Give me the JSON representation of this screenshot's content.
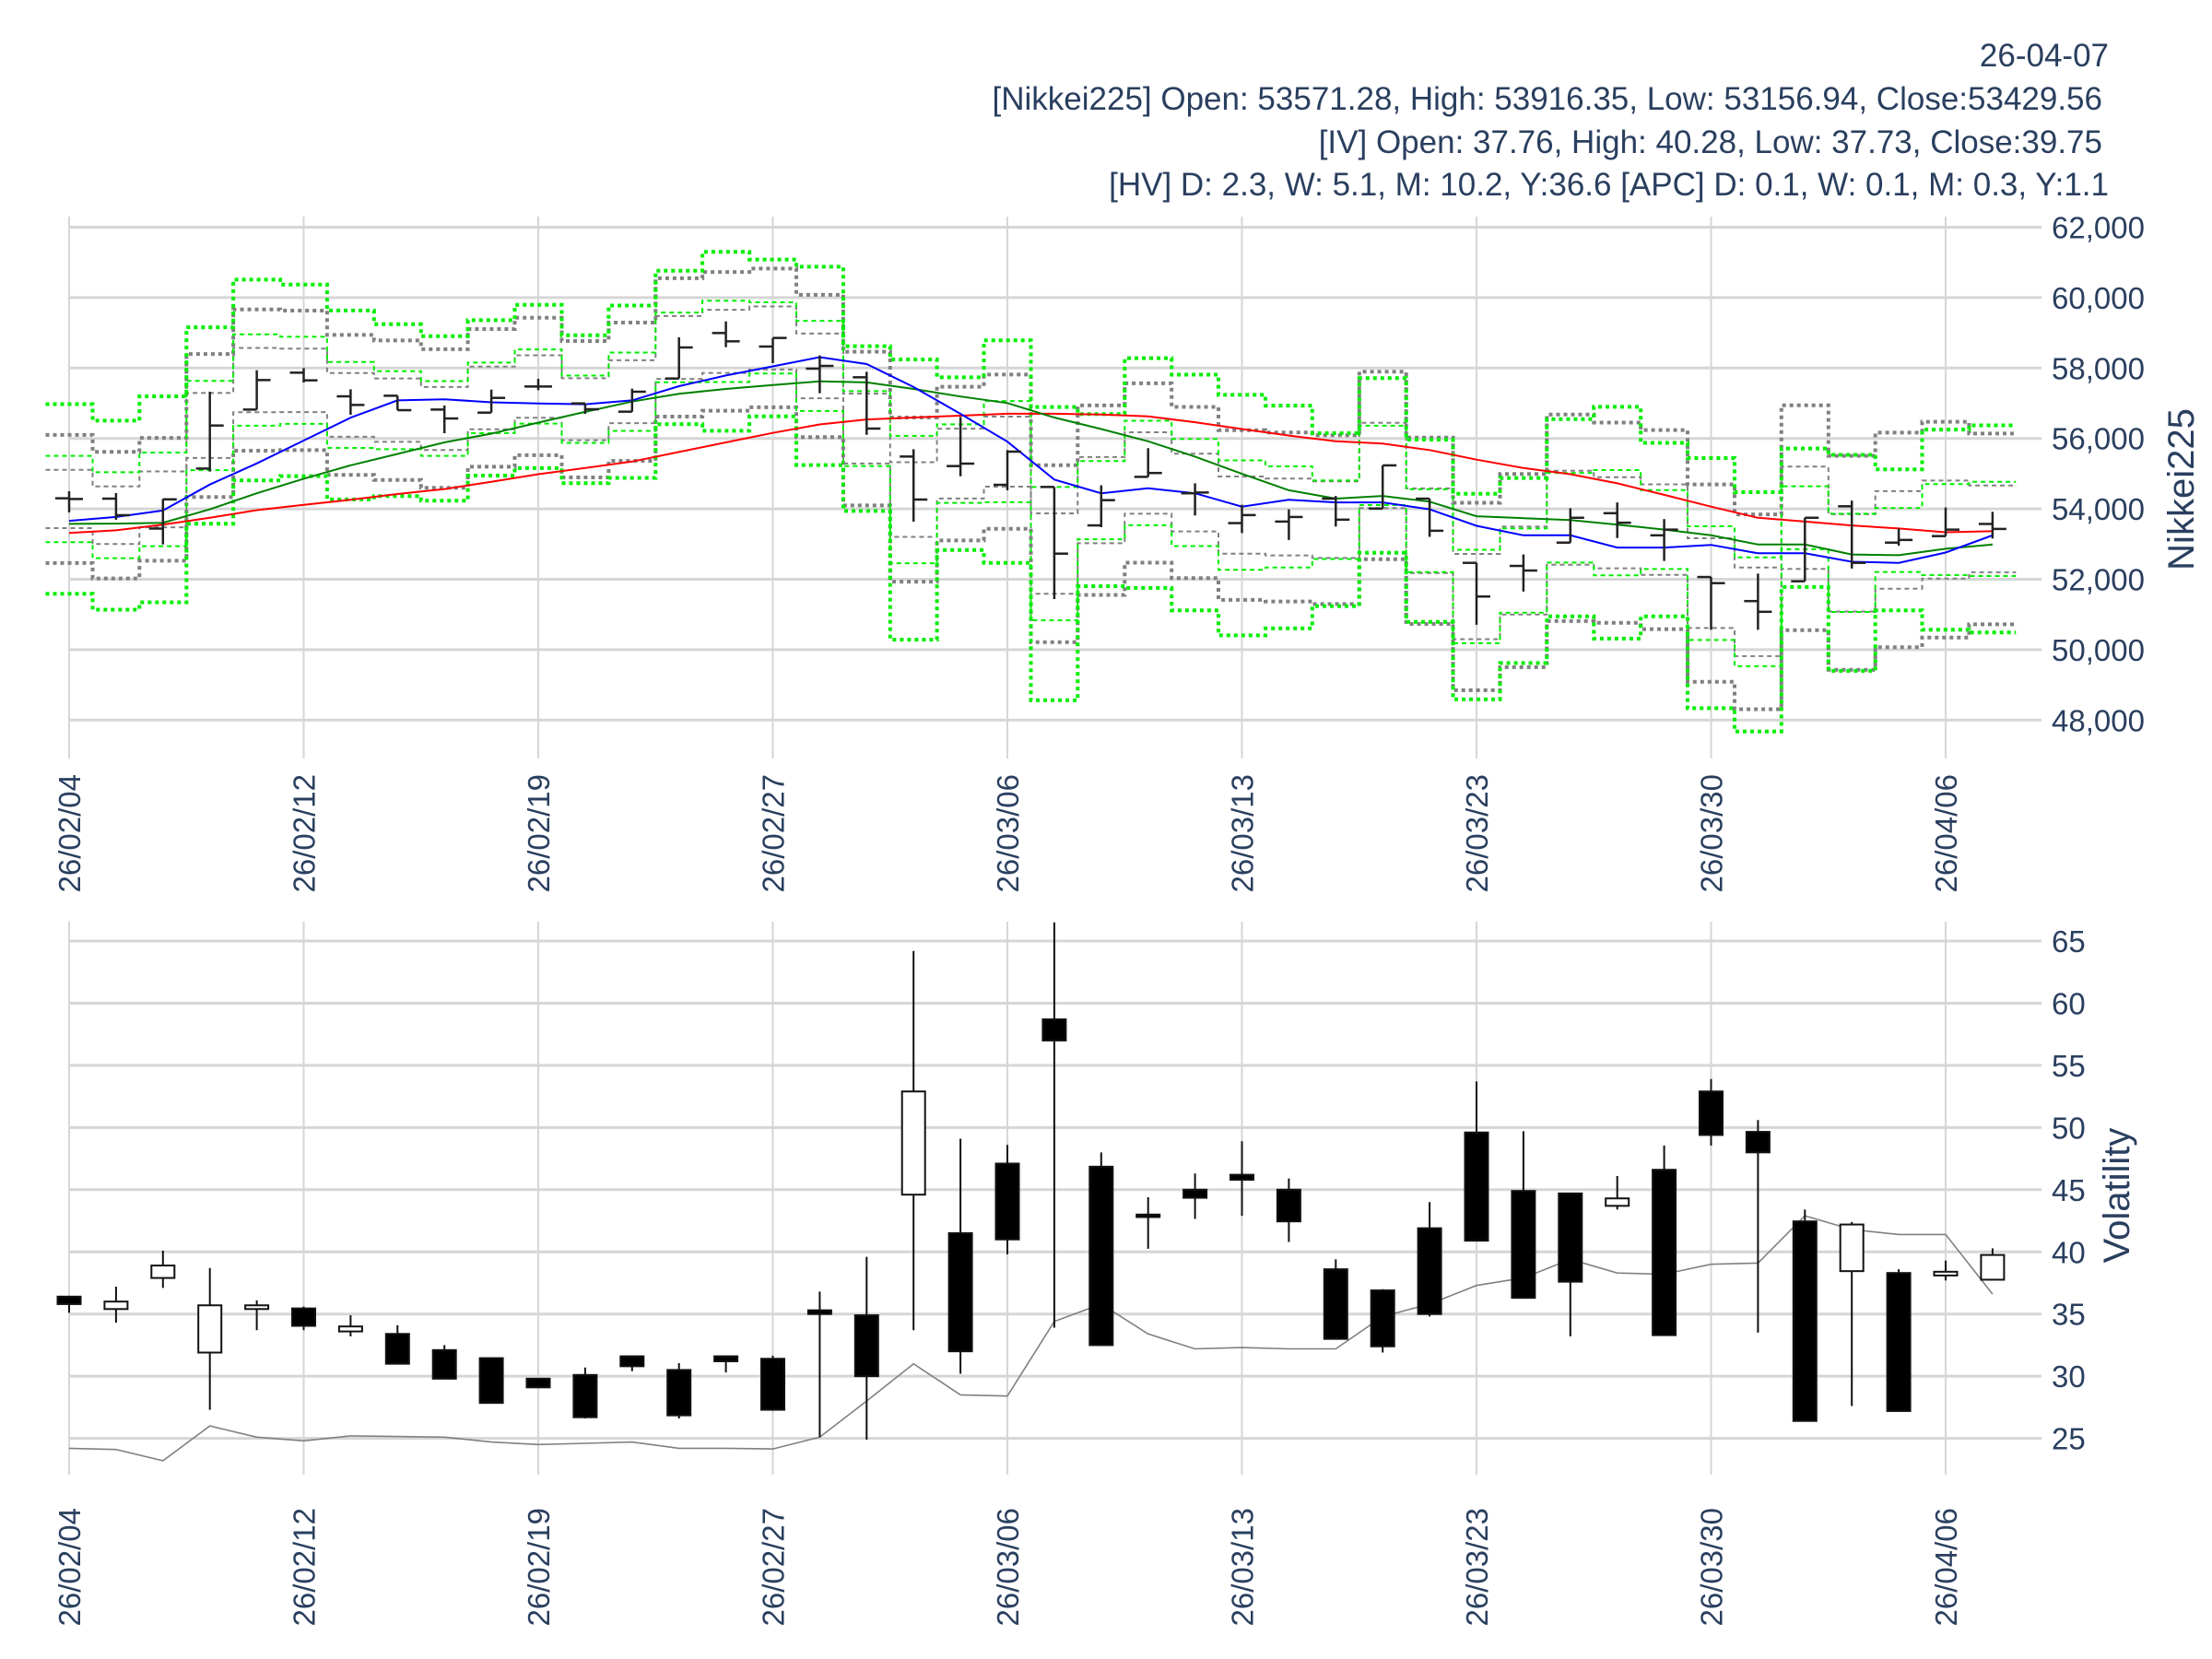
{
  "header": {
    "date": "26-04-07",
    "nikkei_line": "[Nikkei225] Open: 53571.28, High: 53916.35, Low: 53156.94, Close:53429.56",
    "iv_line": "[IV] Open: 37.76, High: 40.28, Low: 37.73, Close:39.75",
    "hv_line": "[HV] D: 2.3, W: 5.1, M: 10.2, Y:36.6 [APC] D: 0.1, W: 0.1, M: 0.3, Y:1.1"
  },
  "colors": {
    "ma_short": "#0000ff",
    "ma_mid": "#008000",
    "ma_long": "#ff0000",
    "band_iv": "#00ee00",
    "band_hv": "#808080",
    "hv_line": "#808080",
    "axis_text": "#2a3f5f",
    "grid": "#d6d6d6"
  },
  "chart_data": [
    {
      "type": "ohlc",
      "ylabel": "Nikkei225",
      "ylim": [
        47200,
        62400
      ],
      "yticks": [
        48000,
        50000,
        52000,
        54000,
        56000,
        58000,
        60000,
        62000
      ],
      "ytick_labels": [
        "48,000",
        "50,000",
        "52,000",
        "54,000",
        "56,000",
        "58,000",
        "60,000",
        "62,000"
      ],
      "x_ticks": [
        {
          "i": 0,
          "label": "26/02/04"
        },
        {
          "i": 5,
          "label": "26/02/12"
        },
        {
          "i": 10,
          "label": "26/02/19"
        },
        {
          "i": 15,
          "label": "26/02/27"
        },
        {
          "i": 20,
          "label": "26/03/06"
        },
        {
          "i": 25,
          "label": "26/03/13"
        },
        {
          "i": 30,
          "label": "26/03/23"
        },
        {
          "i": 35,
          "label": "26/03/30"
        },
        {
          "i": 40,
          "label": "26/04/06"
        }
      ],
      "open": [
        54300,
        54290,
        53440,
        55145,
        56820,
        57868,
        57196,
        57213,
        56820,
        56733,
        57475,
        56995,
        56760,
        57702,
        58994,
        58610,
        57982,
        57737,
        55486,
        55215,
        54683,
        54622,
        53530,
        54909,
        54442,
        53595,
        53639,
        54290,
        54008,
        54290,
        52466,
        52379,
        53041,
        53877,
        53248,
        52064,
        51380,
        51944,
        54073,
        53041,
        53226,
        53571.28
      ],
      "high": [
        54500,
        54450,
        54280,
        57327,
        57938,
        57998,
        57396,
        57213,
        56934,
        57388,
        57693,
        56995,
        57414,
        58872,
        59325,
        58854,
        58357,
        57894,
        55695,
        56612,
        55669,
        54622,
        54670,
        55724,
        54725,
        54116,
        53986,
        54366,
        55235,
        54290,
        52466,
        52705,
        54018,
        54182,
        53710,
        52064,
        52162,
        53747,
        54236,
        53443,
        54040,
        53916.35
      ],
      "low": [
        53900,
        53690,
        52990,
        55058,
        56820,
        57588,
        56672,
        56803,
        56148,
        56733,
        57370,
        56699,
        56760,
        57702,
        58592,
        58139,
        57283,
        56105,
        53635,
        54927,
        54526,
        51436,
        53480,
        54909,
        53812,
        53313,
        53117,
        53497,
        54008,
        53204,
        50707,
        51651,
        53041,
        53172,
        52520,
        50565,
        50565,
        51944,
        52304,
        52954,
        53226,
        53156.94
      ],
      "close": [
        54280,
        53820,
        54270,
        56367,
        57658,
        57650,
        56951,
        56803,
        56567,
        57152,
        57475,
        56830,
        57327,
        58584,
        58758,
        58854,
        58060,
        56280,
        54264,
        55285,
        55625,
        52728,
        54247,
        55018,
        54464,
        53823,
        53769,
        53693,
        55235,
        53378,
        51510,
        52248,
        53747,
        53606,
        53410,
        51890,
        51076,
        53747,
        52466,
        53117,
        53410,
        53429.56
      ],
      "ma_short": [
        53660,
        53770,
        53953,
        54692,
        55290,
        55940,
        56590,
        57081,
        57113,
        57027,
        56994,
        56972,
        57081,
        57483,
        57787,
        58047,
        58308,
        58113,
        57461,
        56700,
        55908,
        54833,
        54442,
        54583,
        54442,
        54062,
        54258,
        54182,
        54182,
        53986,
        53519,
        53248,
        53248,
        52900,
        52900,
        52976,
        52737,
        52737,
        52498,
        52466,
        52758,
        53248
      ],
      "ma_mid": [
        53573,
        53580,
        53606,
        53986,
        54442,
        54855,
        55235,
        55561,
        55887,
        56136,
        56451,
        56755,
        57048,
        57266,
        57407,
        57516,
        57624,
        57592,
        57407,
        57190,
        57005,
        56593,
        56266,
        55919,
        55484,
        54996,
        54529,
        54290,
        54366,
        54203,
        53791,
        53736,
        53682,
        53552,
        53410,
        53248,
        52987,
        52987,
        52705,
        52683,
        52867,
        52987
      ],
      "ma_long": [
        53313,
        53389,
        53552,
        53747,
        53964,
        54116,
        54258,
        54421,
        54562,
        54768,
        54985,
        55159,
        55344,
        55615,
        55887,
        56158,
        56397,
        56538,
        56593,
        56647,
        56701,
        56701,
        56679,
        56625,
        56462,
        56266,
        56082,
        55919,
        55854,
        55669,
        55398,
        55159,
        54985,
        54725,
        54399,
        54062,
        53747,
        53639,
        53530,
        53443,
        53335,
        53367
      ],
      "band_sigmas": [
        1,
        2.2
      ],
      "band_trading_days": 252
    },
    {
      "type": "candlestick",
      "ylabel": "Volatility",
      "ylim": [
        22,
        67
      ],
      "yticks": [
        25,
        30,
        35,
        40,
        45,
        50,
        55,
        60,
        65
      ],
      "ytick_labels": [
        "25",
        "30",
        "35",
        "40",
        "45",
        "50",
        "55",
        "60",
        "65"
      ],
      "x_ticks": [
        {
          "i": 0,
          "label": "26/02/04"
        },
        {
          "i": 5,
          "label": "26/02/12"
        },
        {
          "i": 10,
          "label": "26/02/19"
        },
        {
          "i": 15,
          "label": "26/02/27"
        },
        {
          "i": 20,
          "label": "26/03/06"
        },
        {
          "i": 25,
          "label": "26/03/13"
        },
        {
          "i": 30,
          "label": "26/03/23"
        },
        {
          "i": 35,
          "label": "26/03/30"
        },
        {
          "i": 40,
          "label": "26/04/06"
        }
      ],
      "iv_open": [
        36.4,
        35.4,
        37.9,
        31.9,
        35.4,
        35.45,
        33.6,
        33.4,
        32.1,
        31.45,
        29.8,
        30.1,
        31.6,
        30.5,
        31.6,
        31.4,
        35.3,
        34.9,
        44.6,
        41.5,
        47.1,
        58.7,
        46.85,
        43.0,
        45.0,
        46.2,
        45.0,
        38.6,
        36.9,
        41.9,
        49.6,
        44.9,
        44.7,
        43.7,
        46.6,
        52.9,
        49.65,
        42.45,
        38.45,
        38.3,
        38.1,
        37.76
      ],
      "iv_high": [
        36.4,
        37.2,
        40.1,
        38.7,
        36.1,
        35.6,
        34.9,
        34.1,
        32.5,
        31.45,
        29.8,
        30.7,
        31.6,
        31.05,
        31.6,
        31.65,
        36.8,
        39.6,
        64.2,
        49.1,
        48.6,
        66.5,
        48.0,
        44.4,
        46.3,
        48.9,
        45.9,
        39.4,
        37.0,
        44.0,
        53.7,
        49.7,
        44.7,
        46.1,
        48.55,
        53.9,
        50.6,
        43.4,
        42.4,
        38.6,
        39.3,
        40.28
      ],
      "iv_low": [
        35.1,
        34.3,
        37.1,
        27.3,
        33.7,
        33.7,
        33.2,
        31.0,
        29.8,
        27.85,
        29.1,
        26.6,
        30.4,
        26.6,
        30.3,
        27.3,
        25.1,
        24.9,
        33.7,
        30.2,
        39.8,
        33.9,
        32.5,
        40.25,
        42.65,
        42.9,
        40.8,
        33.0,
        31.9,
        34.8,
        40.9,
        36.3,
        33.2,
        43.4,
        33.3,
        48.55,
        33.5,
        26.4,
        27.6,
        27.2,
        37.7,
        37.73
      ],
      "iv_close": [
        35.8,
        36.0,
        38.9,
        35.7,
        35.7,
        34.05,
        34.0,
        31.0,
        29.8,
        27.85,
        29.1,
        26.7,
        30.8,
        26.85,
        31.2,
        27.3,
        35.0,
        30.0,
        52.9,
        32.0,
        41.0,
        57.0,
        32.5,
        42.8,
        44.35,
        45.8,
        42.45,
        33.0,
        32.4,
        35.0,
        40.9,
        36.3,
        37.6,
        44.3,
        33.3,
        49.4,
        48.0,
        26.4,
        42.2,
        27.2,
        38.4,
        39.75
      ],
      "hv": [
        24.2,
        24.1,
        23.2,
        26.0,
        25.1,
        24.8,
        25.2,
        25.15,
        25.1,
        24.7,
        24.5,
        24.6,
        24.7,
        24.2,
        24.2,
        24.15,
        25.1,
        28.0,
        31.0,
        28.5,
        28.4,
        34.4,
        35.8,
        33.4,
        32.2,
        32.3,
        32.2,
        32.2,
        34.8,
        35.8,
        37.3,
        37.9,
        39.4,
        38.3,
        38.2,
        39.0,
        39.1,
        42.9,
        41.8,
        41.4,
        41.4,
        36.6
      ]
    }
  ]
}
